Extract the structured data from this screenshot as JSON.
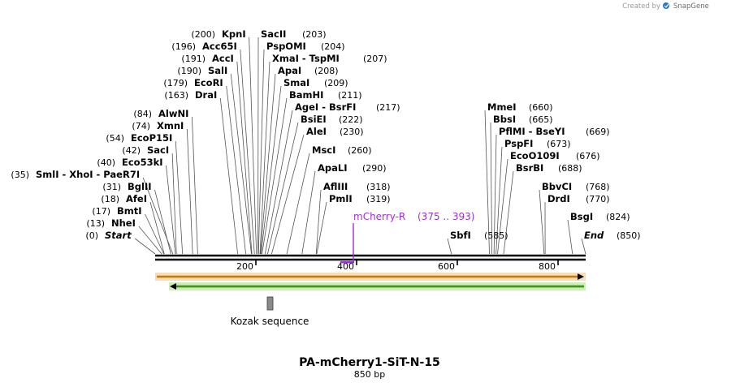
{
  "credit": {
    "prefix": "Created by",
    "brand": "SnapGene"
  },
  "construct": {
    "name": "PA-mCherry1-SiT-N-15",
    "length_label": "850 bp",
    "length": 850
  },
  "colors": {
    "backbone": "#000000",
    "primer": "#9b30d9",
    "orf_forward_fill": "#f5a623",
    "orf_forward_halo": "#f9dcb8",
    "orf_reverse_fill": "#5fbf2a",
    "orf_reverse_halo": "#cdeeb4",
    "kozak_fill": "#8a8a8a"
  },
  "ruler": {
    "ticks": [
      {
        "value": 200,
        "label": "200"
      },
      {
        "value": 400,
        "label": "400"
      },
      {
        "value": 600,
        "label": "600"
      },
      {
        "value": 800,
        "label": "800"
      }
    ]
  },
  "left_sites": [
    {
      "pos": "(200)",
      "name": "KpnI",
      "site": 200
    },
    {
      "pos": "(196)",
      "name": "Acc65I",
      "site": 196
    },
    {
      "pos": "(191)",
      "name": "AccI",
      "site": 191
    },
    {
      "pos": "(190)",
      "name": "SalI",
      "site": 190
    },
    {
      "pos": "(179)",
      "name": "EcoRI",
      "site": 179
    },
    {
      "pos": "(163)",
      "name": "DraI",
      "site": 163
    },
    {
      "pos": "(84)",
      "name": "AlwNI",
      "site": 84
    },
    {
      "pos": "(74)",
      "name": "XmnI",
      "site": 74
    },
    {
      "pos": "(54)",
      "name": "EcoP15I",
      "site": 54
    },
    {
      "pos": "(42)",
      "name": "SacI",
      "site": 42
    },
    {
      "pos": "(40)",
      "name": "Eco53kI",
      "site": 40
    },
    {
      "pos": "(35)",
      "name": "SmlI - XhoI - PaeR7I",
      "site": 35
    },
    {
      "pos": "(31)",
      "name": "BglII",
      "site": 31
    },
    {
      "pos": "(18)",
      "name": "AfeI",
      "site": 18
    },
    {
      "pos": "(17)",
      "name": "BmtI",
      "site": 17
    },
    {
      "pos": "(13)",
      "name": "NheI",
      "site": 13
    },
    {
      "pos": "(0)",
      "name": "Start",
      "site": 0
    }
  ],
  "right_sites": [
    {
      "name": "SacII",
      "pos": "(203)",
      "site": 203
    },
    {
      "name": "PspOMI",
      "pos": "(204)",
      "site": 204
    },
    {
      "name": "XmaI - TspMI",
      "pos": "(207)",
      "site": 207
    },
    {
      "name": "ApaI",
      "pos": "(208)",
      "site": 208
    },
    {
      "name": "SmaI",
      "pos": "(209)",
      "site": 209
    },
    {
      "name": "BamHI",
      "pos": "(211)",
      "site": 211
    },
    {
      "name": "AgeI - BsrFI",
      "pos": "(217)",
      "site": 217
    },
    {
      "name": "BsiEI",
      "pos": "(222)",
      "site": 222
    },
    {
      "name": "AleI",
      "pos": "(230)",
      "site": 230
    },
    {
      "name": "MscI",
      "pos": "(260)",
      "site": 260
    },
    {
      "name": "ApaLI",
      "pos": "(290)",
      "site": 290
    },
    {
      "name": "AflIII",
      "pos": "(318)",
      "site": 318
    },
    {
      "name": "PmlI",
      "pos": "(319)",
      "site": 319
    },
    {
      "name": "MmeI",
      "pos": "(660)",
      "site": 660
    },
    {
      "name": "BbsI",
      "pos": "(665)",
      "site": 665
    },
    {
      "name": "PflMI - BseYI",
      "pos": "(669)",
      "site": 669
    },
    {
      "name": "PspFI",
      "pos": "(673)",
      "site": 673
    },
    {
      "name": "EcoO109I",
      "pos": "(676)",
      "site": 676
    },
    {
      "name": "BsrBI",
      "pos": "(688)",
      "site": 688
    },
    {
      "name": "BbvCI",
      "pos": "(768)",
      "site": 768
    },
    {
      "name": "DrdI",
      "pos": "(770)",
      "site": 770
    },
    {
      "name": "BsgI",
      "pos": "(824)",
      "site": 824
    },
    {
      "name": "SbfI",
      "pos": "(585)",
      "site": 585
    },
    {
      "name": "End",
      "pos": "(850)",
      "site": 850
    }
  ],
  "primer": {
    "name": "mCherry-R",
    "range": "(375 .. 393)",
    "start": 375,
    "end": 393
  },
  "features": {
    "forward_orf": {
      "start": 0,
      "end": 850,
      "direction": "forward"
    },
    "reverse_orf": {
      "start": 30,
      "end": 850,
      "direction": "reverse"
    },
    "kozak": {
      "name": "Kozak sequence",
      "start": 224,
      "end": 234
    }
  }
}
